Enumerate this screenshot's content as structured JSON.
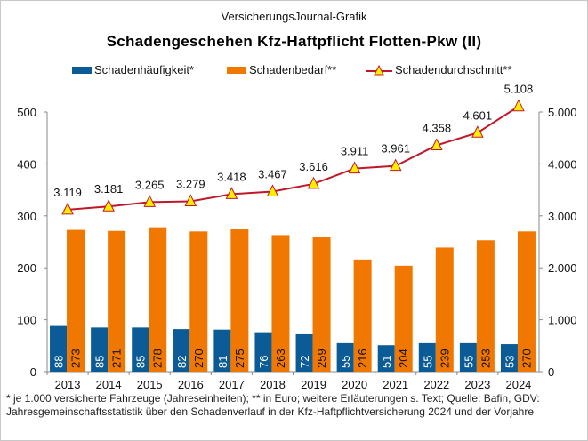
{
  "source": "VersicherungsJournal-Grafik",
  "chart_data": {
    "type": "bar",
    "title": "Schadengeschehen  Kfz-Haftpflicht Flotten-Pkw  (II)",
    "categories": [
      "2013",
      "2014",
      "2015",
      "2016",
      "2017",
      "2018",
      "2019",
      "2020",
      "2021",
      "2022",
      "2023",
      "2024"
    ],
    "series": [
      {
        "name": "Schadenhäufigkeit*",
        "type": "bar",
        "axis": "left",
        "color": "#0b5c96",
        "values": [
          88,
          85,
          85,
          82,
          81,
          76,
          72,
          55,
          51,
          55,
          55,
          53
        ]
      },
      {
        "name": "Schadenbedarf**",
        "type": "bar",
        "axis": "left",
        "color": "#f07800",
        "values": [
          273,
          271,
          278,
          270,
          275,
          263,
          259,
          216,
          204,
          239,
          253,
          270
        ]
      },
      {
        "name": "Schadendurchschnitt**",
        "type": "line",
        "axis": "right",
        "color": "#c0182a",
        "marker": "triangle",
        "marker_color": "#ffee00",
        "values": [
          3119,
          3181,
          3265,
          3279,
          3418,
          3467,
          3616,
          3911,
          3961,
          4358,
          4601,
          5108
        ],
        "labels": [
          "3.119",
          "3.181",
          "3.265",
          "3.279",
          "3.418",
          "3.467",
          "3.616",
          "3.911",
          "3.961",
          "4.358",
          "4.601",
          "5.108"
        ]
      }
    ],
    "y_left": {
      "ylim": [
        0,
        500
      ],
      "ticks": [
        "0",
        "100",
        "200",
        "300",
        "400",
        "500"
      ]
    },
    "y_right": {
      "ylim": [
        0,
        5000
      ],
      "ticks": [
        "0",
        "1.000",
        "2.000",
        "3.000",
        "4.000",
        "5.000"
      ]
    },
    "grid": false,
    "legend": "top"
  },
  "footnote": "* je 1.000 versicherte Fahrzeuge (Jahreseinheiten);  ** in Euro; weitere Erläuterungen  s. Text; Quelle: Bafin, GDV: Jahresgemeinschaftsstatistik über den Schadenverlauf  in der Kfz-Haftpflichtversicherung  2024  und der Vorjahre"
}
